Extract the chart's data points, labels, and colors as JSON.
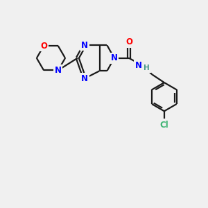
{
  "background_color": "#f0f0f0",
  "bond_color": "#1a1a1a",
  "N_color": "#0000ff",
  "O_color": "#ff0000",
  "Cl_color": "#3cb371",
  "H_color": "#4a9a8a",
  "line_width": 1.6,
  "figsize": [
    3.0,
    3.0
  ],
  "dpi": 100,
  "xlim": [
    0,
    10
  ],
  "ylim": [
    0,
    10
  ]
}
